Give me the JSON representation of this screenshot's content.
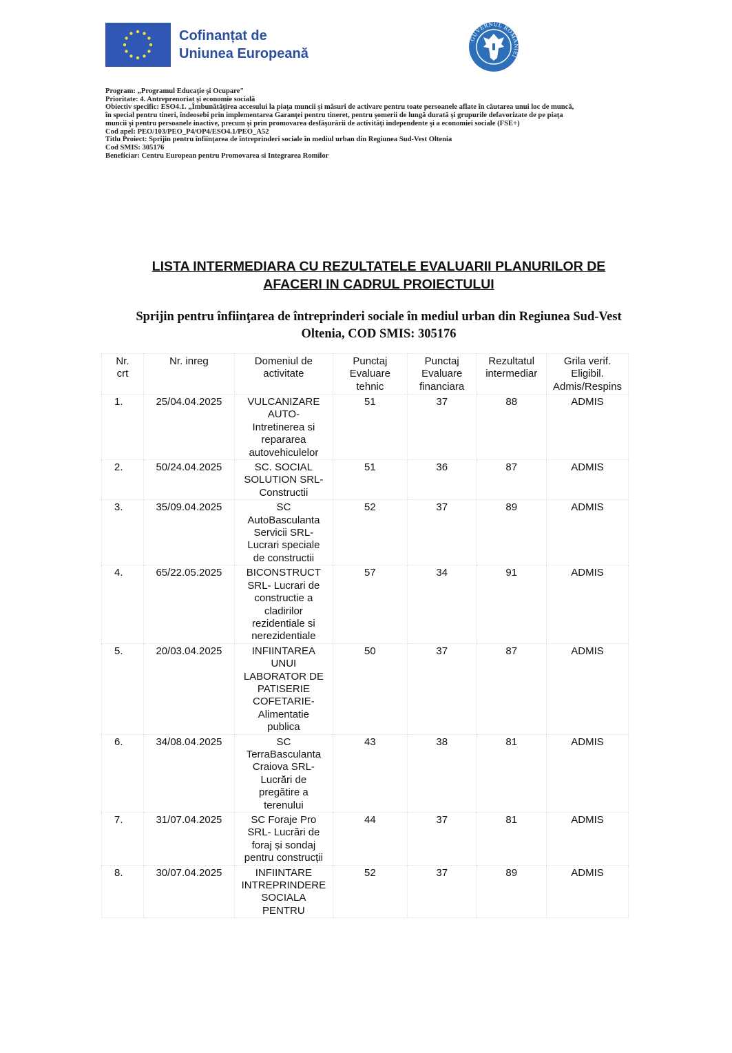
{
  "header": {
    "eu_logo_text": [
      "Cofinanțat de",
      "Uniunea Europeană"
    ],
    "gov_seal_text": "GUVERNUL ROMÂNIEI",
    "colors": {
      "eu_blue": "#2f57b3",
      "eu_star": "#f2e04a",
      "eu_text": "#2a4f9e",
      "gov_blue": "#2d6fb8"
    }
  },
  "meta_lines": [
    "Program: „Programul Educaţie şi Ocupare\"",
    "Prioritate: 4. Antreprenoriat şi economie socială",
    "Obiectiv specific: ESO4.1. „Îmbunătăţirea accesului la piaţa muncii şi măsuri de activare pentru toate persoanele aflate în căutarea unui loc de muncă,",
    "în special pentru tineri, îndeosebi prin implementarea Garanţei pentru tineret, pentru şomerii de lungă durată şi grupurile defavorizate de pe piaţa",
    "muncii şi pentru persoanele inactive, precum şi prin promovarea desfăşurării de activităţi independente şi a economiei sociale (FSE+)",
    "Cod apel: PEO/103/PEO_P4/OP4/ESO4.1/PEO_A52",
    "Titlu Proiect: Sprijin pentru înfiinţarea de întreprinderi sociale în mediul urban din Regiunea Sud-Vest Oltenia",
    "Cod SMIS: 305176",
    "Beneficiar: Centru European pentru Promovarea si Integrarea Romilor"
  ],
  "title": "LISTA INTERMEDIARA CU REZULTATELE EVALUARII PLANURILOR DE\nAFACERI IN CADRUL PROIECTULUI",
  "subtitle": "Sprijin pentru înfiinţarea de întreprinderi sociale în mediul urban din Regiunea Sud-Vest\nOltenia, COD SMIS: 305176",
  "table": {
    "headers": [
      "Nr.\ncrt",
      "Nr. inreg",
      "Domeniul de\nactivitate",
      "Punctaj\nEvaluare\ntehnic",
      "Punctaj\nEvaluare\nfinanciara",
      "Rezultatul\nintermediar",
      "Grila verif.\nEligibil.\nAdmis/Respins"
    ],
    "rows": [
      [
        "1.",
        "25/04.04.2025",
        "VULCANIZARE\nAUTO-\nIntretinerea si\nrepararea\nautovehiculelor",
        "51",
        "37",
        "88",
        "ADMIS"
      ],
      [
        "2.",
        "50/24.04.2025",
        "SC. SOCIAL\nSOLUTION SRL-\nConstructii",
        "51",
        "36",
        "87",
        "ADMIS"
      ],
      [
        "3.",
        "35/09.04.2025",
        "SC\nAutoBasculanta\nServicii SRL-\nLucrari speciale\nde constructii",
        "52",
        "37",
        "89",
        "ADMIS"
      ],
      [
        "4.",
        "65/22.05.2025",
        "BICONSTRUCT\nSRL- Lucrari de\nconstructie a\ncladirilor\nrezidentiale si\nnerezidentiale",
        "57",
        "34",
        "91",
        "ADMIS"
      ],
      [
        "5.",
        "20/03.04.2025",
        "INFIINTAREA\nUNUI\nLABORATOR DE\nPATISERIE\nCOFETARIE-\nAlimentatie\npublica",
        "50",
        "37",
        "87",
        "ADMIS"
      ],
      [
        "6.",
        "34/08.04.2025",
        "SC\nTerraBasculanta\nCraiova SRL-\nLucrări de\npregătire a\nterenului",
        "43",
        "38",
        "81",
        "ADMIS"
      ],
      [
        "7.",
        "31/07.04.2025",
        "SC Foraje Pro\nSRL- Lucrări de\nforaj și sondaj\npentru construcții",
        "44",
        "37",
        "81",
        "ADMIS"
      ],
      [
        "8.",
        "30/07.04.2025",
        "INFIINTARE\nINTREPRINDERE\nSOCIALA\nPENTRU",
        "52",
        "37",
        "89",
        "ADMIS"
      ]
    ]
  }
}
